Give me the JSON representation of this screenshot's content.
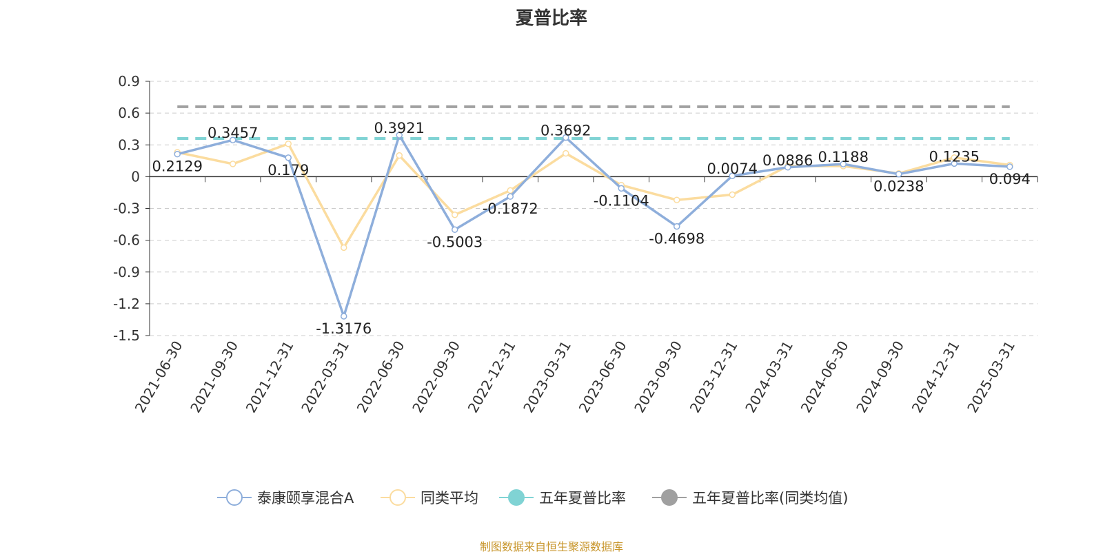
{
  "chart_data": {
    "type": "line",
    "title": "夏普比率",
    "categories": [
      "2021-06-30",
      "2021-09-30",
      "2021-12-31",
      "2022-03-31",
      "2022-06-30",
      "2022-09-30",
      "2022-12-31",
      "2023-03-31",
      "2023-06-30",
      "2023-09-30",
      "2023-12-31",
      "2024-03-31",
      "2024-06-30",
      "2024-09-30",
      "2024-12-31",
      "2025-03-31"
    ],
    "y_ticks": [
      "0.9",
      "0.6",
      "0.3",
      "0",
      "-0.3",
      "-0.6",
      "-0.9",
      "-1.2",
      "-1.5"
    ],
    "ylim": [
      -1.5,
      0.9
    ],
    "grid": true,
    "legend_position": "bottom",
    "series": [
      {
        "name": "泰康颐享混合A",
        "color": "#8eaedb",
        "values": [
          0.2129,
          0.3457,
          0.179,
          -1.3176,
          0.3921,
          -0.5003,
          -0.1872,
          0.3692,
          -0.1104,
          -0.4698,
          0.0074,
          0.0886,
          0.1188,
          0.0238,
          0.1235,
          0.094
        ],
        "labels": [
          "0.2129",
          "0.3457",
          "0.179",
          "-1.3176",
          "0.3921",
          "-0.5003",
          "-0.1872",
          "0.3692",
          "-0.1104",
          "-0.4698",
          "0.0074",
          "0.0886",
          "0.1188",
          "0.0238",
          "0.1235",
          "0.094"
        ]
      },
      {
        "name": "同类平均",
        "color": "#fbdc9f",
        "values": [
          0.23,
          0.12,
          0.31,
          -0.67,
          0.2,
          -0.36,
          -0.13,
          0.22,
          -0.08,
          -0.22,
          -0.17,
          0.1,
          0.1,
          0.03,
          0.18,
          0.11
        ]
      },
      {
        "name": "五年夏普比率",
        "color": "#80d3d4",
        "reference_value": 0.36
      },
      {
        "name": "五年夏普比率(同类均值)",
        "color": "#a0a0a0",
        "reference_value": 0.66
      }
    ]
  },
  "source_note": "制图数据来自恒生聚源数据库"
}
